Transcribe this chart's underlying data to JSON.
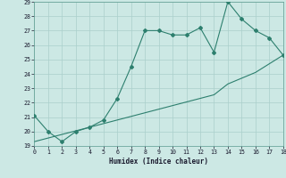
{
  "xlabel": "Humidex (Indice chaleur)",
  "x": [
    0,
    1,
    2,
    3,
    4,
    5,
    6,
    7,
    8,
    9,
    10,
    11,
    12,
    13,
    14,
    15,
    16,
    17,
    18
  ],
  "y_line": [
    21.1,
    20.0,
    19.3,
    20.0,
    20.3,
    20.8,
    22.3,
    24.5,
    27.0,
    27.0,
    26.7,
    26.7,
    27.2,
    25.5,
    29.0,
    27.8,
    27.0,
    26.5,
    25.3
  ],
  "y_trend": [
    19.3,
    19.55,
    19.8,
    20.05,
    20.3,
    20.55,
    20.8,
    21.05,
    21.3,
    21.55,
    21.8,
    22.05,
    22.3,
    22.55,
    23.3,
    23.7,
    24.1,
    24.7,
    25.3
  ],
  "line_color": "#2d7f6e",
  "trend_color": "#2d7f6e",
  "bg_color": "#cce8e4",
  "grid_color": "#aacfcb",
  "ylim": [
    19,
    29
  ],
  "xlim": [
    0,
    18
  ],
  "yticks": [
    19,
    20,
    21,
    22,
    23,
    24,
    25,
    26,
    27,
    28,
    29
  ],
  "xticks": [
    0,
    1,
    2,
    3,
    4,
    5,
    6,
    7,
    8,
    9,
    10,
    11,
    12,
    13,
    14,
    15,
    16,
    17,
    18
  ]
}
